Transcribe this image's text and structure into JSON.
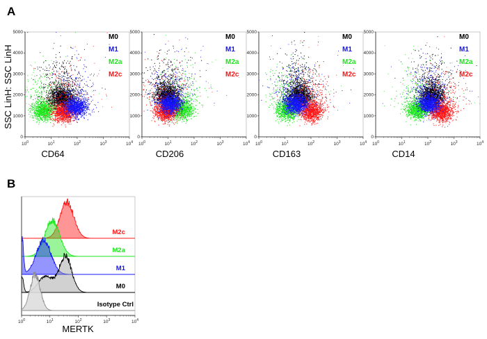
{
  "panels": {
    "a": "A",
    "b": "B"
  },
  "colors": {
    "M0": "#000000",
    "M1": "#1414ff",
    "M2a": "#1ee61e",
    "M2c": "#ff1414",
    "Isotype": "#c8c8c8"
  },
  "chart_data": [
    {
      "type": "scatter",
      "title": "",
      "ylabel": "SSC LinH: SSC LinH",
      "xscale": "log",
      "xlim": [
        1,
        10000
      ],
      "ylim": [
        0,
        5000
      ],
      "ytick_labels": [
        "0",
        "1000",
        "2000",
        "3000",
        "4000",
        "5000"
      ],
      "xtick_labels": [
        {
          "base": "10",
          "exp": "0"
        },
        {
          "base": "10",
          "exp": "1"
        },
        {
          "base": "10",
          "exp": "2"
        },
        {
          "base": "10",
          "exp": "3"
        },
        {
          "base": "10",
          "exp": "4"
        }
      ],
      "legend": [
        "M0",
        "M1",
        "M2a",
        "M2c"
      ],
      "legend_location": "top-right",
      "plots": [
        {
          "xlabel": "CD64",
          "series": [
            {
              "name": "M2a",
              "center_x": 5,
              "center_y": 1300
            },
            {
              "name": "M0",
              "center_x": 25,
              "center_y": 1700
            },
            {
              "name": "M2c",
              "center_x": 30,
              "center_y": 1200
            },
            {
              "name": "M1",
              "center_x": 90,
              "center_y": 1450
            }
          ]
        },
        {
          "xlabel": "CD206",
          "series": [
            {
              "name": "M1",
              "center_x": 12,
              "center_y": 1600
            },
            {
              "name": "M0",
              "center_x": 9,
              "center_y": 1800
            },
            {
              "name": "M2a",
              "center_x": 32,
              "center_y": 1350
            },
            {
              "name": "M2c",
              "center_x": 8,
              "center_y": 1250
            }
          ]
        },
        {
          "xlabel": "CD163",
          "series": [
            {
              "name": "M1",
              "center_x": 25,
              "center_y": 1600
            },
            {
              "name": "M0",
              "center_x": 35,
              "center_y": 1800
            },
            {
              "name": "M2a",
              "center_x": 12,
              "center_y": 1300
            },
            {
              "name": "M2c",
              "center_x": 100,
              "center_y": 1250
            }
          ]
        },
        {
          "xlabel": "CD14",
          "series": [
            {
              "name": "M1",
              "center_x": 110,
              "center_y": 1600
            },
            {
              "name": "M0",
              "center_x": 140,
              "center_y": 1800
            },
            {
              "name": "M2a",
              "center_x": 40,
              "center_y": 1350
            },
            {
              "name": "M2c",
              "center_x": 330,
              "center_y": 1250
            }
          ]
        }
      ]
    },
    {
      "type": "area",
      "title": "",
      "xlabel": "MERTK",
      "xscale": "log",
      "xlim": [
        1,
        10000
      ],
      "xtick_labels": [
        {
          "base": "10",
          "exp": "0"
        },
        {
          "base": "10",
          "exp": "1"
        },
        {
          "base": "10",
          "exp": "2"
        },
        {
          "base": "10",
          "exp": "3"
        },
        {
          "base": "10",
          "exp": "4"
        }
      ],
      "series": [
        {
          "name": "M2c",
          "label": "M2c",
          "peaks": [
            {
              "x": 40,
              "height": 1.0,
              "width": 0.24
            }
          ]
        },
        {
          "name": "M2a",
          "label": "M2a",
          "peaks": [
            {
              "x": 12,
              "height": 1.0,
              "width": 0.26
            }
          ]
        },
        {
          "name": "M1",
          "label": "M1",
          "peaks": [
            {
              "x": 1.05,
              "height": 1.0,
              "width": 0.05
            },
            {
              "x": 6,
              "height": 0.95,
              "width": 0.26
            }
          ]
        },
        {
          "name": "M0",
          "label": "M0",
          "peaks": [
            {
              "x": 1.05,
              "height": 0.45,
              "width": 0.05
            },
            {
              "x": 7,
              "height": 0.45,
              "width": 0.25
            },
            {
              "x": 35,
              "height": 1.0,
              "width": 0.22
            }
          ]
        },
        {
          "name": "Isotype",
          "label": "Isotype Ctrl",
          "peaks": [
            {
              "x": 3,
              "height": 1.0,
              "width": 0.18
            }
          ]
        }
      ]
    }
  ]
}
